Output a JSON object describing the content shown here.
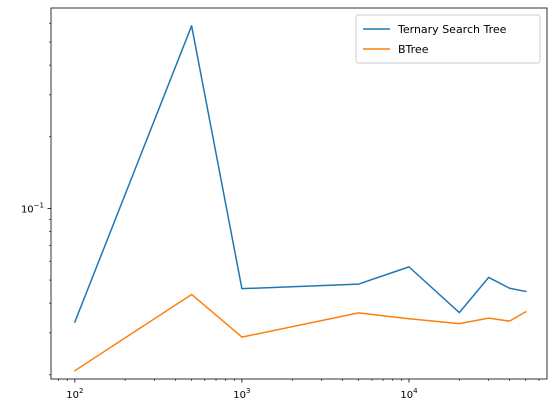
{
  "chart_data": {
    "type": "line",
    "title": "",
    "xlabel": "",
    "ylabel": "",
    "xscale": "log",
    "yscale": "log",
    "xlim": [
      72,
      67000
    ],
    "ylim": [
      0.0192,
      0.695
    ],
    "x_ticks": [
      {
        "value": 100,
        "base": "10",
        "exp": "2"
      },
      {
        "value": 1000,
        "base": "10",
        "exp": "3"
      },
      {
        "value": 10000,
        "base": "10",
        "exp": "4"
      }
    ],
    "y_ticks": [
      {
        "value": 0.1,
        "base": "10",
        "exp": "−1"
      }
    ],
    "grid": false,
    "legend_position": "top-right",
    "x": [
      100,
      500,
      1000,
      5000,
      10000,
      20000,
      30000,
      40000,
      50000
    ],
    "series": [
      {
        "name": "Ternary Search Tree",
        "color": "#1f77b4",
        "values": [
          0.0333,
          0.585,
          0.046,
          0.0481,
          0.0568,
          0.0365,
          0.0513,
          0.0462,
          0.0448
        ]
      },
      {
        "name": "BTree",
        "color": "#ff7f0e",
        "values": [
          0.0208,
          0.0435,
          0.0288,
          0.0364,
          0.0344,
          0.0328,
          0.0346,
          0.0336,
          0.0368
        ]
      }
    ]
  }
}
